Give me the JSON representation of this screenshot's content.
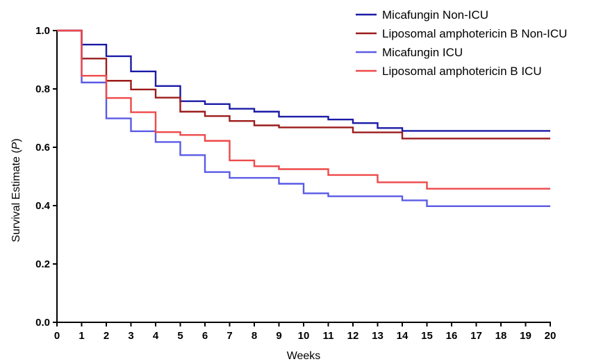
{
  "chart_data": {
    "type": "line",
    "step": true,
    "xlabel": "Weeks",
    "ylabel": "Survival Estimate (",
    "ylabel_italic": "P",
    "ylabel_close": ")",
    "xlim": [
      0,
      20
    ],
    "ylim": [
      0,
      1.0
    ],
    "x_ticks": [
      0,
      1,
      2,
      3,
      4,
      5,
      6,
      7,
      8,
      9,
      10,
      11,
      12,
      13,
      14,
      15,
      16,
      17,
      18,
      19,
      20
    ],
    "x_tick_labels": [
      "0",
      "1",
      "2",
      "3",
      "4",
      "5",
      "6",
      "7",
      "8",
      "9",
      "10",
      "11",
      "12",
      "13",
      "14",
      "15",
      "16",
      "17",
      "18",
      "19",
      "20"
    ],
    "y_ticks": [
      0.0,
      0.2,
      0.4,
      0.6,
      0.8,
      1.0
    ],
    "y_tick_labels": [
      "0.0",
      "0.2",
      "0.4",
      "0.6",
      "0.8",
      "1.0"
    ],
    "grid": false,
    "legend_position": "top-right",
    "series": [
      {
        "name": "Micafungin Non-ICU",
        "color": "#1a1aa6",
        "x": [
          0,
          1,
          2,
          3,
          4,
          5,
          6,
          7,
          8,
          9,
          11,
          12,
          13,
          14,
          20
        ],
        "y": [
          1.0,
          0.952,
          0.912,
          0.86,
          0.81,
          0.758,
          0.748,
          0.732,
          0.722,
          0.705,
          0.695,
          0.683,
          0.666,
          0.656,
          0.656
        ]
      },
      {
        "name": "Liposomal amphotericin B Non-ICU",
        "color": "#9c1b1b",
        "x": [
          0,
          1,
          2,
          3,
          4,
          5,
          6,
          7,
          8,
          9,
          12,
          14,
          20
        ],
        "y": [
          1.0,
          0.904,
          0.828,
          0.798,
          0.77,
          0.722,
          0.707,
          0.69,
          0.675,
          0.668,
          0.651,
          0.63,
          0.63
        ]
      },
      {
        "name": "Micafungin ICU",
        "color": "#5a5ae6",
        "x": [
          0,
          1,
          2,
          3,
          4,
          5,
          6,
          7,
          9,
          10,
          11,
          14,
          15,
          20
        ],
        "y": [
          1.0,
          0.822,
          0.699,
          0.655,
          0.618,
          0.573,
          0.515,
          0.495,
          0.475,
          0.442,
          0.432,
          0.418,
          0.398,
          0.398
        ]
      },
      {
        "name": "Liposomal amphotericin B ICU",
        "color": "#ef4848",
        "x": [
          0,
          1,
          2,
          3,
          4,
          5,
          6,
          7,
          8,
          9,
          11,
          13,
          15,
          20
        ],
        "y": [
          1.0,
          0.845,
          0.769,
          0.72,
          0.652,
          0.642,
          0.622,
          0.555,
          0.535,
          0.525,
          0.505,
          0.48,
          0.458,
          0.458
        ]
      }
    ]
  }
}
